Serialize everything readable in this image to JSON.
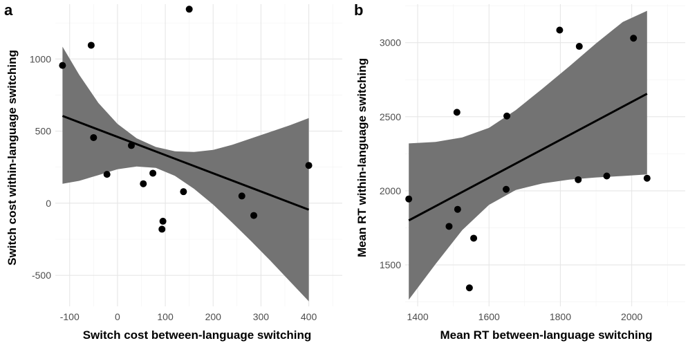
{
  "chart_data": [
    {
      "type": "scatter",
      "panel_tag": "a",
      "xlabel": "Switch cost between-language switching",
      "ylabel": "Switch cost within-language switching",
      "xlim": [
        -130,
        470
      ],
      "ylim": [
        -715,
        1380
      ],
      "x_ticks": [
        -100,
        0,
        100,
        200,
        300,
        400
      ],
      "y_ticks": [
        -500,
        0,
        500,
        1000
      ],
      "x_tick_labels": [
        "-100",
        "0",
        "100",
        "200",
        "300",
        "400"
      ],
      "y_tick_labels": [
        "-500",
        "0",
        "500",
        "1000"
      ],
      "grid": true,
      "points": [
        {
          "x": -115,
          "y": 955
        },
        {
          "x": -55,
          "y": 1095
        },
        {
          "x": -50,
          "y": 455
        },
        {
          "x": -22,
          "y": 200
        },
        {
          "x": 29,
          "y": 400
        },
        {
          "x": 54,
          "y": 135
        },
        {
          "x": 74,
          "y": 208
        },
        {
          "x": 93,
          "y": -180
        },
        {
          "x": 95,
          "y": -125
        },
        {
          "x": 138,
          "y": 80
        },
        {
          "x": 150,
          "y": 1345
        },
        {
          "x": 260,
          "y": 50
        },
        {
          "x": 285,
          "y": -85
        },
        {
          "x": 400,
          "y": 262
        }
      ],
      "fit": {
        "x": [
          -115,
          400
        ],
        "y": [
          605,
          -45
        ]
      },
      "ci_band": {
        "x": [
          -115,
          -80,
          -40,
          0,
          40,
          80,
          120,
          160,
          200,
          240,
          280,
          320,
          360,
          400
        ],
        "lower": [
          135,
          155,
          195,
          235,
          255,
          245,
          190,
          100,
          -10,
          -135,
          -265,
          -400,
          -540,
          -680
        ],
        "upper": [
          1085,
          890,
          695,
          550,
          450,
          390,
          360,
          355,
          370,
          405,
          450,
          495,
          540,
          590
        ]
      },
      "colors": {
        "points": "#000000",
        "fit_line": "#000000",
        "band": "#737373"
      }
    },
    {
      "type": "scatter",
      "panel_tag": "b",
      "xlabel": "Mean RT between-language switching",
      "ylabel": "Mean RT within-language switching",
      "xlim": [
        1365,
        2150
      ],
      "ylim": [
        1220,
        3260
      ],
      "x_ticks": [
        1400,
        1600,
        1800,
        2000
      ],
      "y_ticks": [
        1500,
        2000,
        2500,
        3000
      ],
      "x_tick_labels": [
        "1400",
        "1600",
        "1800",
        "2000"
      ],
      "y_tick_labels": [
        "1500",
        "2000",
        "2500",
        "3000"
      ],
      "grid": true,
      "points": [
        {
          "x": 1375,
          "y": 1945
        },
        {
          "x": 1488,
          "y": 1760
        },
        {
          "x": 1510,
          "y": 2530
        },
        {
          "x": 1512,
          "y": 1875
        },
        {
          "x": 1545,
          "y": 1345
        },
        {
          "x": 1557,
          "y": 1680
        },
        {
          "x": 1648,
          "y": 2010
        },
        {
          "x": 1650,
          "y": 2505
        },
        {
          "x": 1798,
          "y": 3085
        },
        {
          "x": 1850,
          "y": 2075
        },
        {
          "x": 1853,
          "y": 2975
        },
        {
          "x": 1930,
          "y": 2100
        },
        {
          "x": 2005,
          "y": 3030
        },
        {
          "x": 2043,
          "y": 2085
        }
      ],
      "fit": {
        "x": [
          1375,
          2043
        ],
        "y": [
          1800,
          2655
        ]
      },
      "ci_band": {
        "x": [
          1375,
          1450,
          1525,
          1600,
          1675,
          1750,
          1825,
          1900,
          1975,
          2043
        ],
        "lower": [
          1265,
          1505,
          1735,
          1905,
          2005,
          2050,
          2075,
          2090,
          2100,
          2110
        ],
        "upper": [
          2320,
          2330,
          2360,
          2425,
          2545,
          2690,
          2840,
          2995,
          3140,
          3215
        ]
      },
      "colors": {
        "points": "#000000",
        "fit_line": "#000000",
        "band": "#737373"
      }
    }
  ]
}
